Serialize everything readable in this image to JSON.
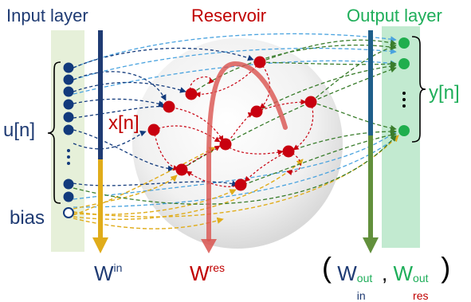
{
  "labels": {
    "input_layer": "Input layer",
    "reservoir": "Reservoir",
    "output_layer": "Output layer",
    "u": "u",
    "u_index": "[n]",
    "x": "x[n]",
    "y": "y",
    "y_index": "[n]",
    "bias": "bias",
    "w_in": "W",
    "w_in_sup": "in",
    "w_res": "W",
    "w_res_sup": "res",
    "w_out_open": "(",
    "w_out_in": "W",
    "w_out_in_sup": "out",
    "w_out_in_sub": "in",
    "w_out_comma": ",",
    "w_out_res": "W",
    "w_out_res_sup": "out",
    "w_out_res_sub": "res",
    "w_out_close": ")"
  },
  "colors": {
    "input_text": "#1f3b73",
    "reservoir_text": "#c00000",
    "output_text": "#1fae5a",
    "input_panel": "#e6f0d9",
    "output_panel": "#c2ead0",
    "input_node": "#123a7c",
    "reservoir_node": "#c8000f",
    "output_node": "#1fae4d",
    "w_in_arrow": "#e0ac1a",
    "w_res_arrow": "#d9534f",
    "w_out_arrow": "#62903c"
  },
  "icons": [
    "reservoir-sphere",
    "input-bracket-brace",
    "output-bracket-brace",
    "vertical-dots"
  ]
}
